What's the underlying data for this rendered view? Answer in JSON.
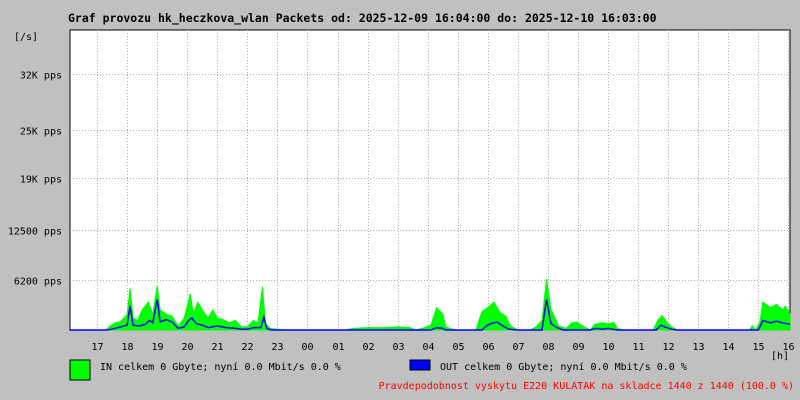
{
  "title": "Graf provozu hk_heczkova_wlan Packets od: 2025-12-09 16:04:00 do: 2025-12-10 16:03:00",
  "legend": {
    "in": {
      "label": "IN celkem 0 Gbyte; nyní   0.0 Mbit/s 0.0 %",
      "color": "#00ff00"
    },
    "out": {
      "label": "OUT celkem 0 Gbyte; nyní   0.0 Mbit/s 0.0 %",
      "color": "#0000ff"
    }
  },
  "footer": "Pravdepodobnost vyskytu E220 KULATAK na skladce 1440 z 1440 (100.0 %)",
  "colors": {
    "background": "#c0c0c0",
    "plot_bg": "#ffffff",
    "grid": "#aaaaaa",
    "in": "#00ff00",
    "out": "#0000ff",
    "footer": "#ff0000"
  },
  "chart_data": {
    "type": "area",
    "y_unit_label": "[/s]",
    "x_unit_label": "[h]",
    "ylim": [
      0,
      37500
    ],
    "y_ticks": [
      {
        "value": 6200,
        "label": "6200 pps"
      },
      {
        "value": 12500,
        "label": "12500 pps"
      },
      {
        "value": 19000,
        "label": "19K pps"
      },
      {
        "value": 25000,
        "label": "25K pps"
      },
      {
        "value": 32000,
        "label": "32K pps"
      }
    ],
    "xlim": [
      16.1,
      40.05
    ],
    "x_ticks": [
      {
        "value": 17,
        "label": "17"
      },
      {
        "value": 18,
        "label": "18"
      },
      {
        "value": 19,
        "label": "19"
      },
      {
        "value": 20,
        "label": "20"
      },
      {
        "value": 21,
        "label": "21"
      },
      {
        "value": 22,
        "label": "22"
      },
      {
        "value": 23,
        "label": "23"
      },
      {
        "value": 24,
        "label": "00"
      },
      {
        "value": 25,
        "label": "01"
      },
      {
        "value": 26,
        "label": "02"
      },
      {
        "value": 27,
        "label": "03"
      },
      {
        "value": 28,
        "label": "04"
      },
      {
        "value": 29,
        "label": "05"
      },
      {
        "value": 30,
        "label": "06"
      },
      {
        "value": 31,
        "label": "07"
      },
      {
        "value": 32,
        "label": "08"
      },
      {
        "value": 33,
        "label": "09"
      },
      {
        "value": 34,
        "label": "10"
      },
      {
        "value": 35,
        "label": "11"
      },
      {
        "value": 36,
        "label": "12"
      },
      {
        "value": 37,
        "label": "13"
      },
      {
        "value": 38,
        "label": "14"
      },
      {
        "value": 39,
        "label": "15"
      },
      {
        "value": 40,
        "label": "16"
      }
    ],
    "grid": true,
    "series": [
      {
        "key": "in",
        "color": "#00ff00",
        "points": [
          [
            16.1,
            0
          ],
          [
            17.3,
            0
          ],
          [
            17.4,
            400
          ],
          [
            17.6,
            900
          ],
          [
            17.75,
            1000
          ],
          [
            17.9,
            1500
          ],
          [
            18.0,
            2000
          ],
          [
            18.1,
            5200
          ],
          [
            18.2,
            1500
          ],
          [
            18.35,
            1200
          ],
          [
            18.5,
            2500
          ],
          [
            18.7,
            3500
          ],
          [
            18.85,
            2000
          ],
          [
            19.0,
            5500
          ],
          [
            19.1,
            2500
          ],
          [
            19.3,
            2000
          ],
          [
            19.5,
            1700
          ],
          [
            19.7,
            500
          ],
          [
            19.9,
            1500
          ],
          [
            20.0,
            3000
          ],
          [
            20.1,
            4500
          ],
          [
            20.2,
            2000
          ],
          [
            20.35,
            3500
          ],
          [
            20.55,
            2200
          ],
          [
            20.7,
            1500
          ],
          [
            20.85,
            2500
          ],
          [
            21.0,
            1500
          ],
          [
            21.2,
            1300
          ],
          [
            21.4,
            900
          ],
          [
            21.6,
            1200
          ],
          [
            21.8,
            400
          ],
          [
            22.0,
            400
          ],
          [
            22.2,
            1200
          ],
          [
            22.35,
            800
          ],
          [
            22.5,
            5400
          ],
          [
            22.6,
            800
          ],
          [
            22.75,
            200
          ],
          [
            23.0,
            100
          ],
          [
            23.2,
            0
          ],
          [
            25.3,
            0
          ],
          [
            25.5,
            200
          ],
          [
            26.0,
            300
          ],
          [
            26.7,
            300
          ],
          [
            27.0,
            400
          ],
          [
            27.4,
            300
          ],
          [
            27.6,
            0
          ],
          [
            27.9,
            300
          ],
          [
            28.1,
            600
          ],
          [
            28.3,
            2800
          ],
          [
            28.5,
            2000
          ],
          [
            28.6,
            400
          ],
          [
            28.9,
            0
          ],
          [
            29.6,
            0
          ],
          [
            29.8,
            2300
          ],
          [
            30.0,
            2800
          ],
          [
            30.2,
            3500
          ],
          [
            30.4,
            2200
          ],
          [
            30.6,
            1700
          ],
          [
            30.75,
            500
          ],
          [
            31.0,
            0
          ],
          [
            31.4,
            0
          ],
          [
            31.6,
            400
          ],
          [
            31.8,
            1200
          ],
          [
            31.95,
            6400
          ],
          [
            32.1,
            2500
          ],
          [
            32.2,
            1800
          ],
          [
            32.35,
            500
          ],
          [
            32.6,
            200
          ],
          [
            32.8,
            900
          ],
          [
            32.95,
            1000
          ],
          [
            33.2,
            400
          ],
          [
            33.4,
            0
          ],
          [
            33.55,
            700
          ],
          [
            33.8,
            900
          ],
          [
            34.0,
            800
          ],
          [
            34.2,
            900
          ],
          [
            34.3,
            200
          ],
          [
            34.5,
            0
          ],
          [
            35.5,
            0
          ],
          [
            35.65,
            1200
          ],
          [
            35.8,
            1800
          ],
          [
            35.95,
            1000
          ],
          [
            36.1,
            400
          ],
          [
            36.3,
            0
          ],
          [
            38.7,
            0
          ],
          [
            38.8,
            500
          ],
          [
            38.9,
            0
          ],
          [
            39.05,
            1000
          ],
          [
            39.15,
            3500
          ],
          [
            39.4,
            2800
          ],
          [
            39.6,
            3200
          ],
          [
            39.8,
            2500
          ],
          [
            39.9,
            3000
          ],
          [
            40.05,
            2000
          ]
        ]
      },
      {
        "key": "out",
        "color": "#0000ff",
        "points": [
          [
            16.1,
            0
          ],
          [
            17.3,
            0
          ],
          [
            17.5,
            100
          ],
          [
            18.0,
            600
          ],
          [
            18.1,
            3000
          ],
          [
            18.2,
            600
          ],
          [
            18.4,
            500
          ],
          [
            18.6,
            700
          ],
          [
            18.75,
            1200
          ],
          [
            18.85,
            900
          ],
          [
            19.0,
            3800
          ],
          [
            19.1,
            1000
          ],
          [
            19.3,
            1300
          ],
          [
            19.5,
            1000
          ],
          [
            19.7,
            200
          ],
          [
            19.9,
            400
          ],
          [
            20.05,
            1200
          ],
          [
            20.15,
            1500
          ],
          [
            20.3,
            800
          ],
          [
            20.5,
            600
          ],
          [
            20.7,
            300
          ],
          [
            21.0,
            500
          ],
          [
            21.3,
            300
          ],
          [
            21.6,
            200
          ],
          [
            21.8,
            100
          ],
          [
            22.0,
            100
          ],
          [
            22.2,
            300
          ],
          [
            22.45,
            300
          ],
          [
            22.55,
            1600
          ],
          [
            22.65,
            200
          ],
          [
            22.8,
            0
          ],
          [
            28.1,
            0
          ],
          [
            28.3,
            300
          ],
          [
            28.5,
            200
          ],
          [
            28.6,
            0
          ],
          [
            29.8,
            0
          ],
          [
            29.95,
            500
          ],
          [
            30.1,
            800
          ],
          [
            30.3,
            1000
          ],
          [
            30.5,
            500
          ],
          [
            30.7,
            100
          ],
          [
            31.0,
            0
          ],
          [
            31.8,
            0
          ],
          [
            31.95,
            3800
          ],
          [
            32.1,
            800
          ],
          [
            32.3,
            300
          ],
          [
            32.5,
            0
          ],
          [
            33.4,
            0
          ],
          [
            33.6,
            200
          ],
          [
            33.8,
            100
          ],
          [
            34.0,
            200
          ],
          [
            34.3,
            0
          ],
          [
            35.6,
            0
          ],
          [
            35.75,
            600
          ],
          [
            35.95,
            300
          ],
          [
            36.1,
            100
          ],
          [
            36.3,
            0
          ],
          [
            39.0,
            0
          ],
          [
            39.15,
            1200
          ],
          [
            39.4,
            900
          ],
          [
            39.6,
            1100
          ],
          [
            39.8,
            900
          ],
          [
            40.05,
            700
          ]
        ]
      }
    ]
  }
}
